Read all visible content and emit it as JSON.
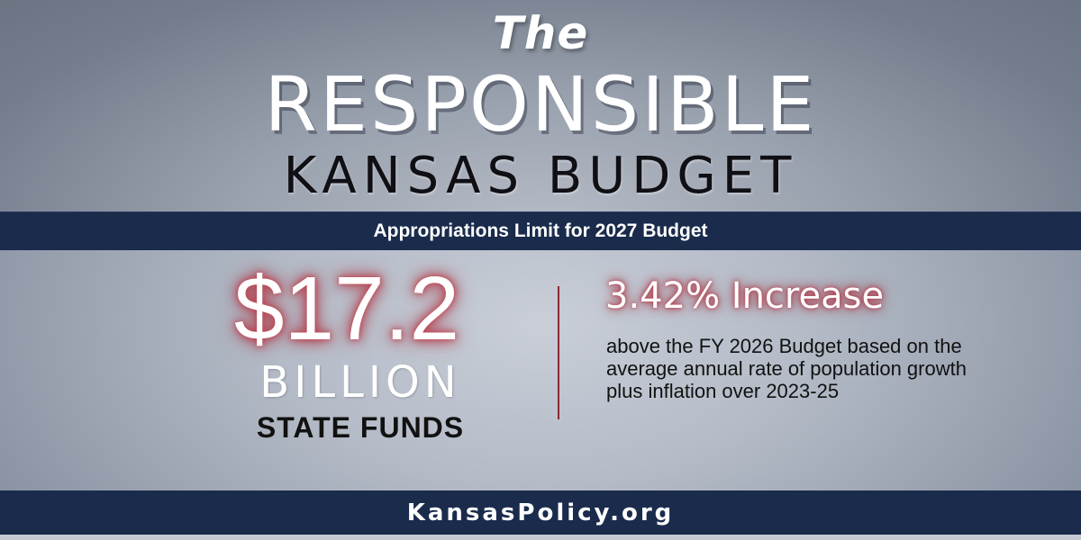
{
  "header": {
    "title_the": "The",
    "title_responsible": "RESPONSIBLE",
    "title_budget": "KANSAS BUDGET"
  },
  "banner": {
    "text": "Appropriations Limit for 2027 Budget"
  },
  "left_stat": {
    "amount": "$17.2",
    "unit": "BILLION",
    "label": "STATE FUNDS"
  },
  "right_stat": {
    "headline": "3.42% Increase",
    "description": "above the FY 2026 Budget based on the average annual rate of population growth plus inflation over 2023-25"
  },
  "footer": {
    "url": "KansasPolicy.org"
  },
  "colors": {
    "navy_band": "#1a2b4c",
    "accent_red": "#8c2a35",
    "glow_red": "#b03040"
  }
}
